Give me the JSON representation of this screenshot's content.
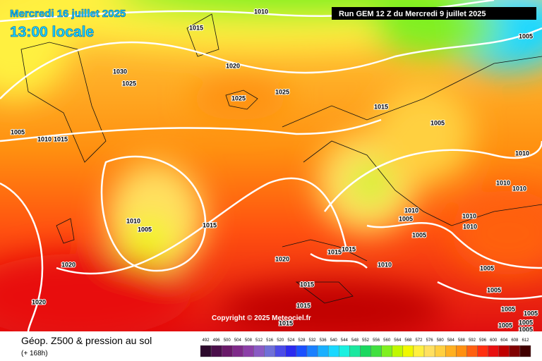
{
  "header": {
    "date": "Mercredi 16 juillet 2025",
    "time": "13:00 locale",
    "run": "Run GEM 12 Z du Mercredi 9 juillet 2025"
  },
  "copyright": "Copyright © 2025 Meteociel.fr",
  "footer": {
    "title": "Géop. Z500 & pression au sol",
    "lead": "(+ 168h)"
  },
  "isobar_labels": [
    1010,
    1015,
    1020,
    1030,
    1025,
    1025,
    1025,
    1005,
    1015,
    1005,
    1005,
    1010,
    1015,
    1010,
    1010,
    1010,
    1010,
    1005,
    1010,
    1010,
    1005,
    1010,
    1005,
    1015,
    1015,
    1015,
    1020,
    1010,
    1020,
    1005,
    1005,
    1015,
    1020,
    1005,
    1005,
    1015,
    1015,
    1005,
    1005,
    1005
  ],
  "scale": {
    "values": [
      492,
      496,
      500,
      504,
      508,
      512,
      516,
      520,
      524,
      528,
      532,
      536,
      540,
      544,
      548,
      552,
      556,
      560,
      564,
      568,
      572,
      576,
      580,
      584,
      588,
      592,
      596,
      600,
      604,
      608,
      612
    ],
    "colors": [
      "#2d0a2d",
      "#4b0f4b",
      "#6a1a6a",
      "#7f2a8a",
      "#8c3fa8",
      "#8a5ac4",
      "#6f6fd8",
      "#4a4ae8",
      "#2a2af0",
      "#1a50ff",
      "#1a80ff",
      "#1ab0ff",
      "#1ad8ff",
      "#1af0e0",
      "#1ae8a0",
      "#1ad860",
      "#40e040",
      "#80f020",
      "#c0f800",
      "#f0f800",
      "#fff040",
      "#ffe060",
      "#ffd040",
      "#ffb020",
      "#ff9010",
      "#ff6010",
      "#ff3010",
      "#e81010",
      "#c00000",
      "#800000",
      "#400000"
    ]
  }
}
